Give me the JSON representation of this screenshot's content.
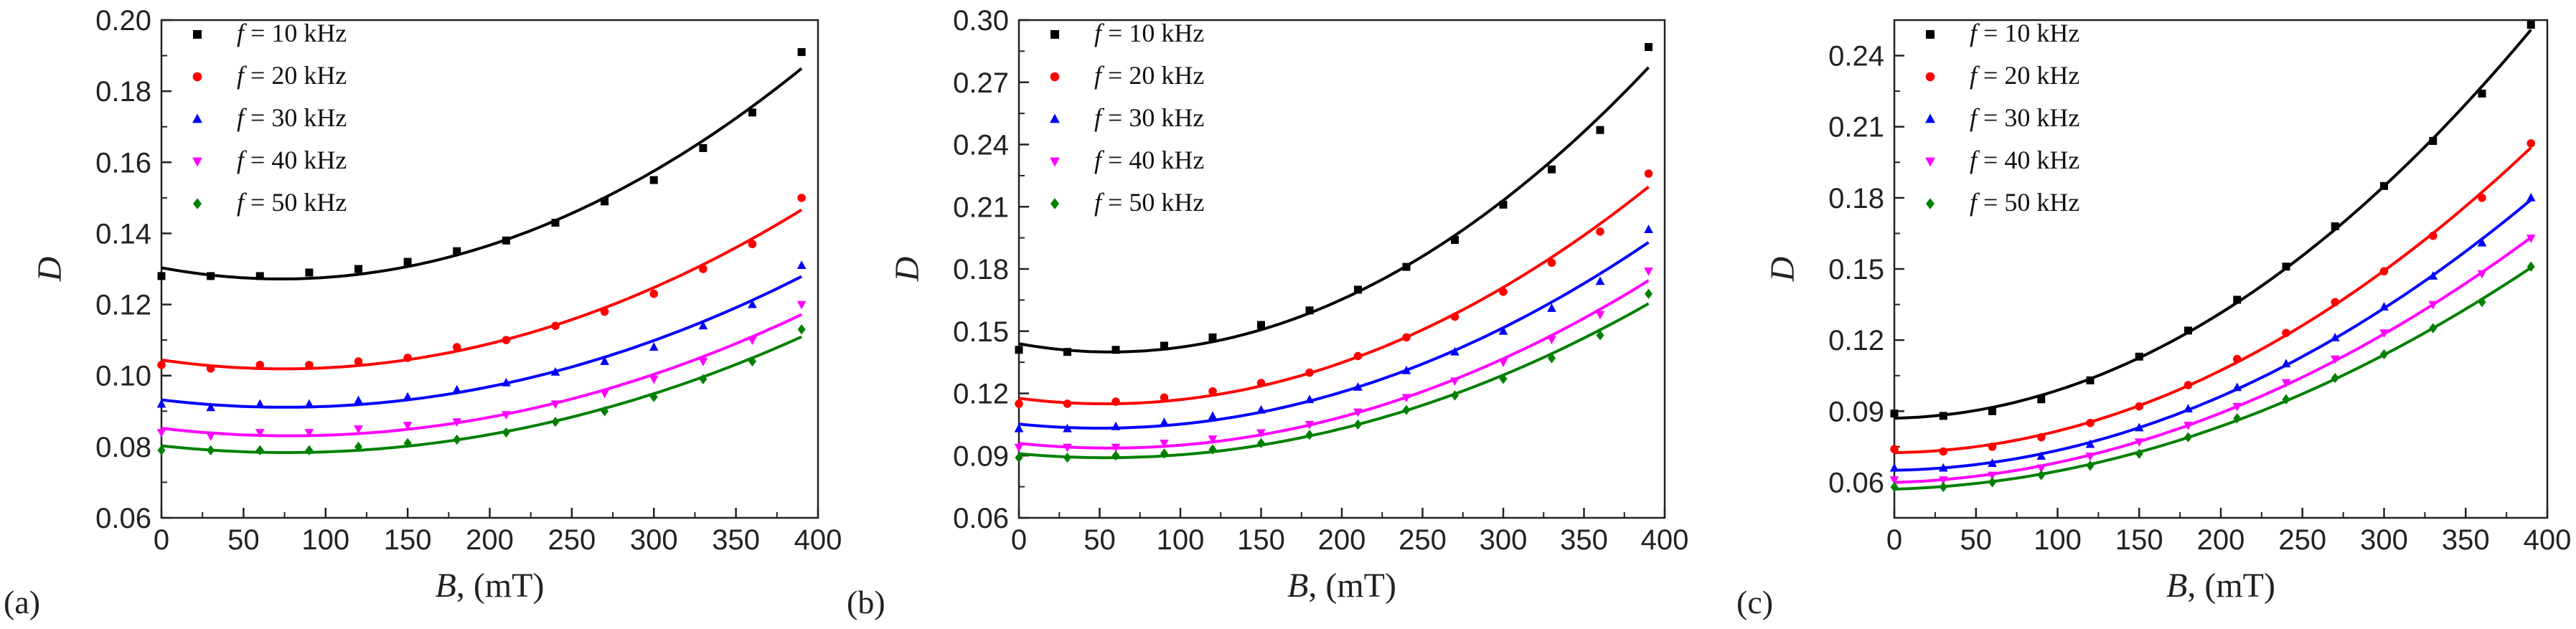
{
  "figure": {
    "legend_position": "top-left",
    "legend_var": "f",
    "legend_prefix": " = "
  },
  "chart_data": [
    {
      "panel": "(a)",
      "type": "scatter",
      "xlabel": {
        "var": "B",
        "rest": ", (mT)"
      },
      "ylabel": "D",
      "xlim": [
        0,
        400
      ],
      "ylim": [
        0.06,
        0.2
      ],
      "xticks": [
        0,
        50,
        100,
        150,
        200,
        250,
        300,
        350,
        400
      ],
      "yticks": [
        0.06,
        0.08,
        0.1,
        0.12,
        0.14,
        0.16,
        0.18,
        0.2
      ],
      "ydecimals": 2,
      "x": [
        0,
        30,
        60,
        90,
        120,
        150,
        180,
        210,
        240,
        270,
        300,
        330,
        360,
        390
      ],
      "series": [
        {
          "name": "10 kHz",
          "color": "#000000",
          "marker": "square",
          "values": [
            0.128,
            0.128,
            0.128,
            0.129,
            0.13,
            0.132,
            0.135,
            0.138,
            0.143,
            0.149,
            0.155,
            0.164,
            0.174,
            0.191
          ]
        },
        {
          "name": "20 kHz",
          "color": "#ff0000",
          "marker": "circle",
          "values": [
            0.103,
            0.102,
            0.103,
            0.103,
            0.104,
            0.105,
            0.108,
            0.11,
            0.114,
            0.118,
            0.123,
            0.13,
            0.137,
            0.15
          ]
        },
        {
          "name": "30 kHz",
          "color": "#0000ff",
          "marker": "triangle",
          "values": [
            0.092,
            0.091,
            0.092,
            0.092,
            0.093,
            0.094,
            0.096,
            0.098,
            0.101,
            0.104,
            0.108,
            0.114,
            0.12,
            0.131
          ]
        },
        {
          "name": "40 kHz",
          "color": "#ff00ff",
          "marker": "tri-down",
          "values": [
            0.084,
            0.083,
            0.084,
            0.084,
            0.085,
            0.086,
            0.087,
            0.089,
            0.092,
            0.095,
            0.099,
            0.104,
            0.11,
            0.12
          ]
        },
        {
          "name": "50 kHz",
          "color": "#008000",
          "marker": "diamond",
          "values": [
            0.079,
            0.079,
            0.079,
            0.079,
            0.08,
            0.081,
            0.082,
            0.084,
            0.087,
            0.09,
            0.094,
            0.099,
            0.104,
            0.113
          ]
        }
      ]
    },
    {
      "panel": "(b)",
      "type": "scatter",
      "xlabel": {
        "var": "B",
        "rest": ", (mT)"
      },
      "ylabel": "D",
      "xlim": [
        0,
        400
      ],
      "ylim": [
        0.06,
        0.3
      ],
      "xticks": [
        0,
        50,
        100,
        150,
        200,
        250,
        300,
        350,
        400
      ],
      "yticks": [
        0.06,
        0.09,
        0.12,
        0.15,
        0.18,
        0.21,
        0.24,
        0.27,
        0.3
      ],
      "ydecimals": 2,
      "x": [
        0,
        30,
        60,
        90,
        120,
        150,
        180,
        210,
        240,
        270,
        300,
        330,
        360,
        390
      ],
      "series": [
        {
          "name": "10 kHz",
          "color": "#000000",
          "marker": "square",
          "values": [
            0.141,
            0.14,
            0.141,
            0.143,
            0.147,
            0.153,
            0.16,
            0.17,
            0.181,
            0.194,
            0.211,
            0.228,
            0.247,
            0.287
          ]
        },
        {
          "name": "20 kHz",
          "color": "#ff0000",
          "marker": "circle",
          "values": [
            0.115,
            0.115,
            0.116,
            0.118,
            0.121,
            0.125,
            0.13,
            0.138,
            0.147,
            0.157,
            0.169,
            0.183,
            0.198,
            0.226
          ]
        },
        {
          "name": "30 kHz",
          "color": "#0000ff",
          "marker": "triangle",
          "values": [
            0.103,
            0.103,
            0.104,
            0.106,
            0.109,
            0.112,
            0.117,
            0.123,
            0.131,
            0.14,
            0.15,
            0.161,
            0.174,
            0.199
          ]
        },
        {
          "name": "40 kHz",
          "color": "#ff00ff",
          "marker": "tri-down",
          "values": [
            0.094,
            0.094,
            0.094,
            0.096,
            0.098,
            0.101,
            0.105,
            0.111,
            0.118,
            0.126,
            0.135,
            0.146,
            0.158,
            0.179
          ]
        },
        {
          "name": "50 kHz",
          "color": "#008000",
          "marker": "diamond",
          "values": [
            0.089,
            0.089,
            0.09,
            0.091,
            0.093,
            0.096,
            0.1,
            0.105,
            0.112,
            0.119,
            0.127,
            0.137,
            0.148,
            0.168
          ]
        }
      ]
    },
    {
      "panel": "(c)",
      "type": "scatter",
      "xlabel": {
        "var": "B",
        "rest": ", (mT)"
      },
      "ylabel": "D",
      "xlim": [
        0,
        400
      ],
      "ylim": [
        0.045,
        0.255
      ],
      "xticks": [
        0,
        50,
        100,
        150,
        200,
        250,
        300,
        350,
        400
      ],
      "yticks": [
        0.06,
        0.09,
        0.12,
        0.15,
        0.18,
        0.21,
        0.24
      ],
      "ydecimals": 2,
      "x": [
        0,
        30,
        60,
        90,
        120,
        150,
        180,
        210,
        240,
        270,
        300,
        330,
        360,
        390
      ],
      "series": [
        {
          "name": "10 kHz",
          "color": "#000000",
          "marker": "square",
          "values": [
            0.089,
            0.088,
            0.09,
            0.095,
            0.103,
            0.113,
            0.124,
            0.137,
            0.151,
            0.168,
            0.185,
            0.204,
            0.224,
            0.253
          ]
        },
        {
          "name": "20 kHz",
          "color": "#ff0000",
          "marker": "circle",
          "values": [
            0.074,
            0.073,
            0.075,
            0.079,
            0.085,
            0.092,
            0.101,
            0.112,
            0.123,
            0.136,
            0.149,
            0.164,
            0.18,
            0.203
          ]
        },
        {
          "name": "30 kHz",
          "color": "#0000ff",
          "marker": "triangle",
          "values": [
            0.066,
            0.066,
            0.068,
            0.071,
            0.076,
            0.083,
            0.091,
            0.1,
            0.11,
            0.121,
            0.134,
            0.147,
            0.161,
            0.18
          ]
        },
        {
          "name": "40 kHz",
          "color": "#ff00ff",
          "marker": "tri-down",
          "values": [
            0.061,
            0.061,
            0.063,
            0.066,
            0.071,
            0.077,
            0.084,
            0.092,
            0.102,
            0.112,
            0.123,
            0.135,
            0.148,
            0.163
          ]
        },
        {
          "name": "50 kHz",
          "color": "#008000",
          "marker": "diamond",
          "values": [
            0.058,
            0.058,
            0.06,
            0.063,
            0.067,
            0.072,
            0.079,
            0.087,
            0.095,
            0.104,
            0.114,
            0.125,
            0.136,
            0.151
          ]
        }
      ]
    }
  ]
}
